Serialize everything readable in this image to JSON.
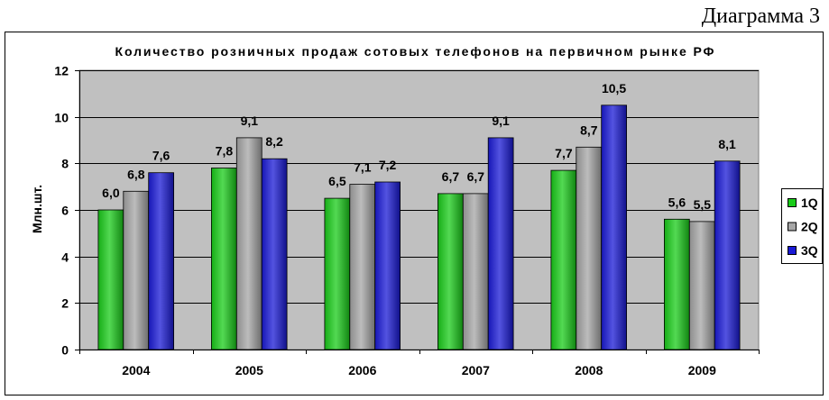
{
  "caption": "Диаграмма 3",
  "chart_data": {
    "type": "bar",
    "title": "Количество розничных продаж сотовых телефонов на первичном рынке РФ",
    "ylabel": "Млн.шт.",
    "categories": [
      "2004",
      "2005",
      "2006",
      "2007",
      "2008",
      "2009"
    ],
    "series": [
      {
        "name": "1Q",
        "color": "#1ACC1A",
        "values": [
          6.0,
          7.8,
          6.5,
          6.7,
          7.7,
          5.6
        ],
        "labels": [
          "6,0",
          "7,8",
          "6,5",
          "6,7",
          "7,7",
          "5,6"
        ]
      },
      {
        "name": "2Q",
        "color": "#A6A6A6",
        "values": [
          6.8,
          9.1,
          7.1,
          6.7,
          8.7,
          5.5
        ],
        "labels": [
          "6,8",
          "9,1",
          "7,1",
          "6,7",
          "8,7",
          "5,5"
        ]
      },
      {
        "name": "3Q",
        "color": "#1A1AD6",
        "values": [
          7.6,
          8.2,
          7.2,
          9.1,
          10.5,
          8.1
        ],
        "labels": [
          "7,6",
          "8,2",
          "7,2",
          "9,1",
          "10,5",
          "8,1"
        ]
      }
    ],
    "ylim": [
      0,
      12
    ],
    "yticks": [
      0,
      2,
      4,
      6,
      8,
      10,
      12
    ],
    "grid": true,
    "legend": "right",
    "plot_background": "#C0C0C0"
  }
}
